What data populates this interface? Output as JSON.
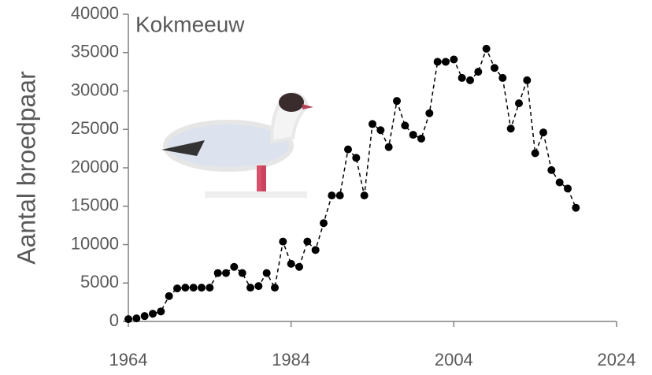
{
  "chart_data": {
    "type": "line",
    "title": "Kokmeeuw",
    "y_label": "Aantal broedpaar",
    "x": [
      1964,
      1965,
      1966,
      1967,
      1968,
      1969,
      1970,
      1971,
      1972,
      1973,
      1974,
      1975,
      1976,
      1977,
      1978,
      1979,
      1980,
      1981,
      1982,
      1983,
      1984,
      1985,
      1986,
      1987,
      1988,
      1989,
      1990,
      1991,
      1992,
      1993,
      1994,
      1995,
      1996,
      1997,
      1998,
      1999,
      2000,
      2001,
      2002,
      2003,
      2004,
      2005,
      2006,
      2007,
      2008,
      2009,
      2010,
      2011,
      2012,
      2013,
      2014,
      2015,
      2016,
      2017,
      2018,
      2019
    ],
    "values": [
      300,
      400,
      700,
      1000,
      1300,
      3300,
      4300,
      4400,
      4400,
      4400,
      4400,
      6300,
      6300,
      7100,
      6300,
      4400,
      4600,
      6300,
      4400,
      10400,
      7500,
      7100,
      10400,
      9300,
      12800,
      16400,
      16400,
      22400,
      21300,
      16400,
      25700,
      24900,
      22700,
      28700,
      25500,
      24300,
      23800,
      27100,
      33800,
      33800,
      34100,
      31700,
      31400,
      32500,
      35500,
      33000,
      31700,
      25100,
      28400,
      31400,
      21900,
      24600,
      19700,
      18100,
      17300,
      14800
    ],
    "color": "#000000",
    "xlim": [
      1964,
      2024
    ],
    "xticks": [
      1964,
      1984,
      2004,
      2024
    ],
    "ylim": [
      0,
      40000
    ],
    "yticks": [
      0,
      5000,
      10000,
      15000,
      20000,
      25000,
      30000,
      35000,
      40000
    ]
  }
}
